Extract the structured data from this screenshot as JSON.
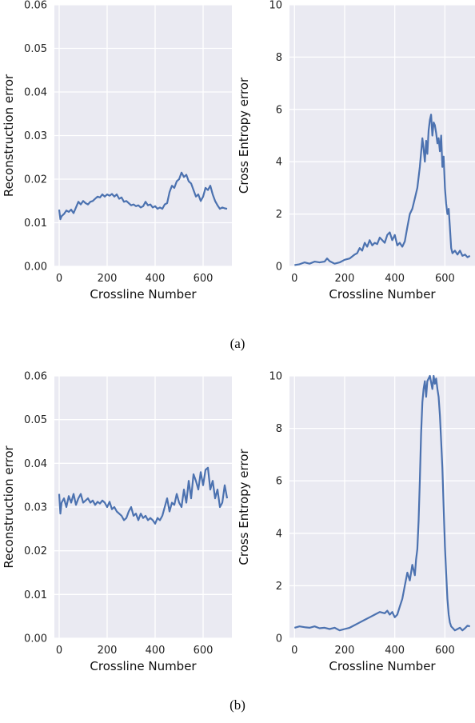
{
  "captions": {
    "a": "(a)",
    "b": "(b)"
  },
  "chart_data": [
    {
      "type": "line",
      "xlabel": "Crossline Number",
      "ylabel": "Reconstruction error",
      "xlim": [
        -20,
        720
      ],
      "ylim": [
        0,
        0.06
      ],
      "xticks": [
        0,
        200,
        400,
        600
      ],
      "yticks": [
        0.0,
        0.01,
        0.02,
        0.03,
        0.04,
        0.05,
        0.06
      ],
      "ytick_labels": [
        "0.00",
        "0.01",
        "0.02",
        "0.03",
        "0.04",
        "0.05",
        "0.06"
      ],
      "grid": true,
      "color": "#4c72b0",
      "series": [
        {
          "x": [
            0,
            5,
            10,
            20,
            30,
            40,
            50,
            60,
            70,
            80,
            90,
            100,
            110,
            120,
            130,
            140,
            150,
            160,
            170,
            180,
            190,
            200,
            210,
            220,
            230,
            240,
            250,
            260,
            270,
            280,
            290,
            300,
            310,
            320,
            330,
            340,
            350,
            360,
            370,
            380,
            390,
            400,
            410,
            420,
            430,
            440,
            450,
            460,
            470,
            480,
            490,
            500,
            510,
            520,
            530,
            540,
            550,
            560,
            570,
            580,
            590,
            600,
            610,
            620,
            630,
            640,
            650,
            660,
            670,
            680,
            690,
            700
          ],
          "y": [
            0.013,
            0.0108,
            0.0115,
            0.012,
            0.0128,
            0.0125,
            0.013,
            0.0122,
            0.0135,
            0.0148,
            0.0142,
            0.015,
            0.0145,
            0.0142,
            0.0148,
            0.015,
            0.0155,
            0.016,
            0.0158,
            0.0165,
            0.016,
            0.0165,
            0.0162,
            0.0166,
            0.016,
            0.0165,
            0.0155,
            0.0158,
            0.0148,
            0.015,
            0.0145,
            0.014,
            0.0142,
            0.0138,
            0.014,
            0.0135,
            0.0138,
            0.0148,
            0.014,
            0.0142,
            0.0135,
            0.0138,
            0.0132,
            0.0135,
            0.0132,
            0.0142,
            0.0145,
            0.017,
            0.0185,
            0.018,
            0.0195,
            0.02,
            0.0215,
            0.0205,
            0.021,
            0.0195,
            0.019,
            0.0175,
            0.016,
            0.0165,
            0.015,
            0.016,
            0.018,
            0.0175,
            0.0185,
            0.0165,
            0.015,
            0.014,
            0.0132,
            0.0135,
            0.0133,
            0.0132
          ]
        }
      ]
    },
    {
      "type": "line",
      "xlabel": "Crossline Number",
      "ylabel": "Cross Entropy error",
      "xlim": [
        -20,
        720
      ],
      "ylim": [
        0,
        10
      ],
      "xticks": [
        0,
        200,
        400,
        600
      ],
      "yticks": [
        0,
        2,
        4,
        6,
        8,
        10
      ],
      "ytick_labels": [
        "0",
        "2",
        "4",
        "6",
        "8",
        "10"
      ],
      "grid": true,
      "color": "#4c72b0",
      "series": [
        {
          "x": [
            0,
            20,
            40,
            60,
            80,
            100,
            120,
            130,
            140,
            160,
            180,
            200,
            220,
            240,
            250,
            260,
            270,
            280,
            290,
            300,
            310,
            320,
            330,
            340,
            350,
            360,
            370,
            380,
            390,
            400,
            410,
            420,
            430,
            440,
            450,
            460,
            470,
            480,
            490,
            500,
            510,
            515,
            520,
            525,
            530,
            535,
            540,
            545,
            550,
            555,
            560,
            565,
            570,
            575,
            580,
            585,
            590,
            595,
            600,
            605,
            610,
            615,
            620,
            625,
            630,
            640,
            650,
            660,
            670,
            680,
            690,
            700
          ],
          "y": [
            0.05,
            0.08,
            0.15,
            0.1,
            0.18,
            0.15,
            0.18,
            0.3,
            0.2,
            0.1,
            0.15,
            0.25,
            0.3,
            0.45,
            0.5,
            0.7,
            0.6,
            0.9,
            0.75,
            1.0,
            0.8,
            0.9,
            0.85,
            1.1,
            1.0,
            0.9,
            1.2,
            1.3,
            1.0,
            1.2,
            0.8,
            0.9,
            0.75,
            0.95,
            1.5,
            2.0,
            2.2,
            2.6,
            3.0,
            3.8,
            4.9,
            4.5,
            4.0,
            4.8,
            4.3,
            5.2,
            5.6,
            5.8,
            5.0,
            5.5,
            5.4,
            5.1,
            4.7,
            4.9,
            4.4,
            5.0,
            3.8,
            4.2,
            3.0,
            2.4,
            2.0,
            2.2,
            1.5,
            0.7,
            0.5,
            0.6,
            0.45,
            0.6,
            0.4,
            0.45,
            0.35,
            0.4
          ]
        }
      ]
    },
    {
      "type": "line",
      "xlabel": "Crossline Number",
      "ylabel": "Reconstruction error",
      "xlim": [
        -20,
        720
      ],
      "ylim": [
        0,
        0.06
      ],
      "xticks": [
        0,
        200,
        400,
        600
      ],
      "yticks": [
        0.0,
        0.01,
        0.02,
        0.03,
        0.04,
        0.05,
        0.06
      ],
      "ytick_labels": [
        "0.00",
        "0.01",
        "0.02",
        "0.03",
        "0.04",
        "0.05",
        "0.06"
      ],
      "grid": true,
      "color": "#4c72b0",
      "series": [
        {
          "x": [
            0,
            5,
            10,
            20,
            30,
            40,
            50,
            60,
            70,
            80,
            90,
            100,
            110,
            120,
            130,
            140,
            150,
            160,
            170,
            180,
            190,
            200,
            210,
            220,
            230,
            240,
            250,
            260,
            270,
            280,
            290,
            300,
            310,
            320,
            330,
            340,
            350,
            360,
            370,
            380,
            390,
            400,
            410,
            420,
            430,
            440,
            450,
            460,
            470,
            480,
            490,
            500,
            510,
            520,
            530,
            540,
            550,
            560,
            570,
            580,
            590,
            600,
            610,
            620,
            630,
            640,
            650,
            660,
            670,
            680,
            690,
            700
          ],
          "y": [
            0.033,
            0.0285,
            0.031,
            0.032,
            0.03,
            0.0325,
            0.031,
            0.033,
            0.0305,
            0.032,
            0.033,
            0.031,
            0.0315,
            0.032,
            0.031,
            0.0315,
            0.0305,
            0.0312,
            0.0308,
            0.0315,
            0.031,
            0.03,
            0.0312,
            0.0295,
            0.03,
            0.029,
            0.0285,
            0.028,
            0.027,
            0.0275,
            0.029,
            0.03,
            0.028,
            0.0285,
            0.027,
            0.0285,
            0.0275,
            0.028,
            0.027,
            0.0275,
            0.027,
            0.0262,
            0.0275,
            0.027,
            0.028,
            0.03,
            0.032,
            0.029,
            0.031,
            0.0305,
            0.033,
            0.031,
            0.03,
            0.034,
            0.031,
            0.036,
            0.032,
            0.0375,
            0.036,
            0.034,
            0.038,
            0.035,
            0.0385,
            0.039,
            0.034,
            0.036,
            0.032,
            0.034,
            0.03,
            0.031,
            0.035,
            0.032
          ]
        }
      ]
    },
    {
      "type": "line",
      "xlabel": "Crossline Number",
      "ylabel": "Cross Entropy error",
      "xlim": [
        -20,
        720
      ],
      "ylim": [
        0,
        10
      ],
      "xticks": [
        0,
        200,
        400,
        600
      ],
      "yticks": [
        0,
        2,
        4,
        6,
        8,
        10
      ],
      "ytick_labels": [
        "0",
        "2",
        "4",
        "6",
        "8",
        "10"
      ],
      "grid": true,
      "color": "#4c72b0",
      "series": [
        {
          "x": [
            0,
            20,
            40,
            60,
            80,
            100,
            120,
            140,
            160,
            180,
            200,
            220,
            240,
            260,
            280,
            300,
            320,
            340,
            360,
            370,
            380,
            390,
            400,
            410,
            420,
            430,
            440,
            450,
            460,
            470,
            480,
            485,
            490,
            495,
            500,
            505,
            510,
            515,
            520,
            525,
            530,
            540,
            550,
            555,
            560,
            565,
            570,
            575,
            580,
            585,
            590,
            595,
            600,
            605,
            610,
            615,
            620,
            625,
            630,
            640,
            650,
            660,
            670,
            680,
            690,
            700
          ],
          "y": [
            0.4,
            0.45,
            0.42,
            0.4,
            0.45,
            0.38,
            0.4,
            0.35,
            0.4,
            0.3,
            0.35,
            0.4,
            0.5,
            0.6,
            0.7,
            0.8,
            0.9,
            1.0,
            0.95,
            1.05,
            0.9,
            1.0,
            0.8,
            0.9,
            1.2,
            1.5,
            2.0,
            2.5,
            2.2,
            2.8,
            2.4,
            3.0,
            3.4,
            4.5,
            6.0,
            7.8,
            9.0,
            9.5,
            9.8,
            9.2,
            9.8,
            10.0,
            9.5,
            10.0,
            9.7,
            9.9,
            9.5,
            9.2,
            8.5,
            7.5,
            6.5,
            5.0,
            3.5,
            2.5,
            1.5,
            0.9,
            0.6,
            0.45,
            0.4,
            0.3,
            0.35,
            0.4,
            0.3,
            0.38,
            0.48,
            0.45
          ]
        }
      ]
    }
  ]
}
